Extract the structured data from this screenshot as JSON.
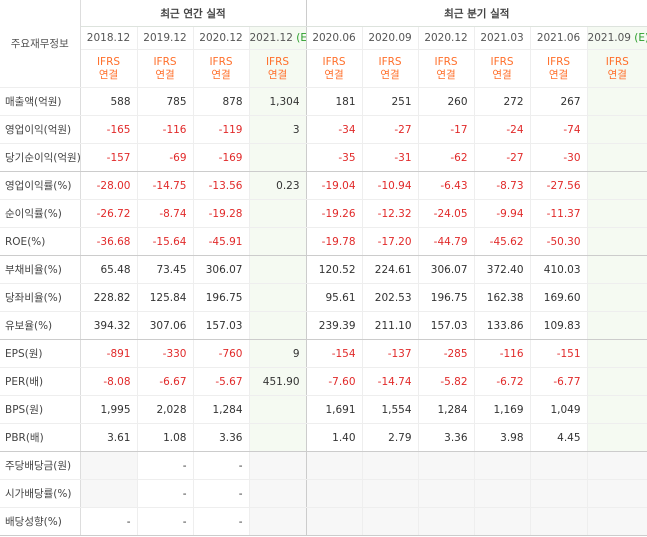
{
  "table": {
    "corner": "주요재무정보",
    "sections": [
      {
        "title": "최근 연간 실적",
        "columns": [
          {
            "period": "2018.12",
            "standard": "IFRS",
            "consolidation": "연결"
          },
          {
            "period": "2019.12",
            "standard": "IFRS",
            "consolidation": "연결"
          },
          {
            "period": "2020.12",
            "standard": "IFRS",
            "consolidation": "연결"
          },
          {
            "period": "2021.12",
            "estimate": "(E)",
            "standard": "IFRS",
            "consolidation": "연결"
          }
        ]
      },
      {
        "title": "최근 분기 실적",
        "columns": [
          {
            "period": "2020.06",
            "standard": "IFRS",
            "consolidation": "연결"
          },
          {
            "period": "2020.09",
            "standard": "IFRS",
            "consolidation": "연결"
          },
          {
            "period": "2020.12",
            "standard": "IFRS",
            "consolidation": "연결"
          },
          {
            "period": "2021.03",
            "standard": "IFRS",
            "consolidation": "연결"
          },
          {
            "period": "2021.06",
            "standard": "IFRS",
            "consolidation": "연결"
          },
          {
            "period": "2021.09",
            "estimate": "(E)",
            "standard": "IFRS",
            "consolidation": "연결"
          }
        ]
      }
    ],
    "groups": [
      {
        "rows": [
          {
            "label": "매출액(억원)",
            "cells": [
              "588",
              "785",
              "878",
              "1,304",
              "181",
              "251",
              "260",
              "272",
              "267",
              null
            ]
          },
          {
            "label": "영업이익(억원)",
            "cells": [
              "-165",
              "-116",
              "-119",
              "3",
              "-34",
              "-27",
              "-17",
              "-24",
              "-74",
              null
            ]
          },
          {
            "label": "당기순이익(억원)",
            "cells": [
              "-157",
              "-69",
              "-169",
              null,
              "-35",
              "-31",
              "-62",
              "-27",
              "-30",
              null
            ]
          }
        ]
      },
      {
        "rows": [
          {
            "label": "영업이익률(%)",
            "cells": [
              "-28.00",
              "-14.75",
              "-13.56",
              "0.23",
              "-19.04",
              "-10.94",
              "-6.43",
              "-8.73",
              "-27.56",
              null
            ]
          },
          {
            "label": "순이익률(%)",
            "cells": [
              "-26.72",
              "-8.74",
              "-19.28",
              null,
              "-19.26",
              "-12.32",
              "-24.05",
              "-9.94",
              "-11.37",
              null
            ]
          },
          {
            "label": "ROE(%)",
            "cells": [
              "-36.68",
              "-15.64",
              "-45.91",
              null,
              "-19.78",
              "-17.20",
              "-44.79",
              "-45.62",
              "-50.30",
              null
            ]
          }
        ]
      },
      {
        "rows": [
          {
            "label": "부채비율(%)",
            "cells": [
              "65.48",
              "73.45",
              "306.07",
              null,
              "120.52",
              "224.61",
              "306.07",
              "372.40",
              "410.03",
              null
            ]
          },
          {
            "label": "당좌비율(%)",
            "cells": [
              "228.82",
              "125.84",
              "196.75",
              null,
              "95.61",
              "202.53",
              "196.75",
              "162.38",
              "169.60",
              null
            ]
          },
          {
            "label": "유보율(%)",
            "cells": [
              "394.32",
              "307.06",
              "157.03",
              null,
              "239.39",
              "211.10",
              "157.03",
              "133.86",
              "109.83",
              null
            ]
          }
        ]
      },
      {
        "rows": [
          {
            "label": "EPS(원)",
            "cells": [
              "-891",
              "-330",
              "-760",
              "9",
              "-154",
              "-137",
              "-285",
              "-116",
              "-151",
              null
            ]
          },
          {
            "label": "PER(배)",
            "cells": [
              "-8.08",
              "-6.67",
              "-5.67",
              "451.90",
              "-7.60",
              "-14.74",
              "-5.82",
              "-6.72",
              "-6.77",
              null
            ]
          },
          {
            "label": "BPS(원)",
            "cells": [
              "1,995",
              "2,028",
              "1,284",
              null,
              "1,691",
              "1,554",
              "1,284",
              "1,169",
              "1,049",
              null
            ]
          },
          {
            "label": "PBR(배)",
            "cells": [
              "3.61",
              "1.08",
              "3.36",
              null,
              "1.40",
              "2.79",
              "3.36",
              "3.98",
              "4.45",
              null
            ]
          }
        ]
      },
      {
        "rows": [
          {
            "label": "주당배당금(원)",
            "cells": [
              null,
              "-",
              "-",
              null,
              null,
              null,
              null,
              null,
              null,
              null
            ]
          },
          {
            "label": "시가배당률(%)",
            "cells": [
              null,
              "-",
              "-",
              null,
              null,
              null,
              null,
              null,
              null,
              null
            ]
          },
          {
            "label": "배당성향(%)",
            "cells": [
              "-",
              "-",
              "-",
              null,
              null,
              null,
              null,
              null,
              null,
              null
            ]
          }
        ]
      }
    ]
  }
}
